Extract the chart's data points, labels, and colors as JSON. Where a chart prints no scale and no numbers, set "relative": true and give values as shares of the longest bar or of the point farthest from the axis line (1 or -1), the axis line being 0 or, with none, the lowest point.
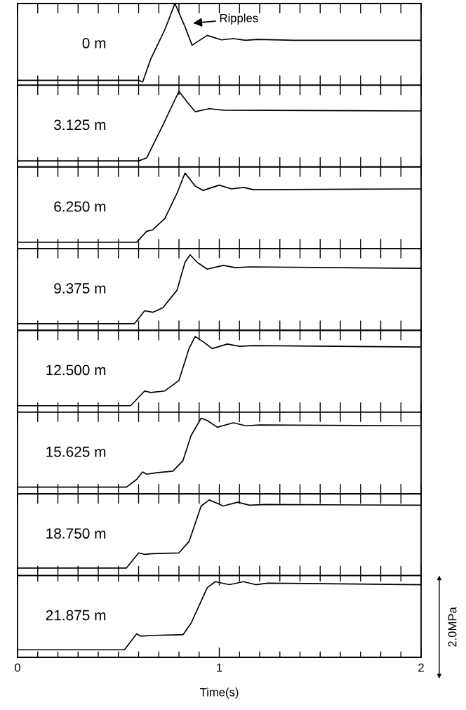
{
  "chart_data": [
    {
      "type": "line",
      "relative": true,
      "annotations": [
        "0 m",
        "Ripples"
      ],
      "color": "#000000",
      "x": [
        0,
        0.6,
        0.62,
        0.66,
        0.73,
        0.78,
        0.83,
        0.865,
        0.94,
        1.01,
        1.07,
        1.13,
        1.19,
        1.37,
        2.0
      ],
      "values": [
        0.06,
        0.06,
        0.04,
        0.32,
        0.68,
        1.0,
        0.715,
        0.49,
        0.61,
        0.555,
        0.57,
        0.55,
        0.56,
        0.55,
        0.55
      ],
      "xlim": [
        0,
        2
      ],
      "xticks": [
        0,
        0.1,
        0.2,
        0.3,
        0.4,
        0.5,
        0.6,
        0.7,
        0.8,
        0.9,
        1,
        1.1,
        1.2,
        1.3,
        1.4,
        1.5,
        1.6,
        1.7,
        1.8,
        1.9,
        2
      ],
      "tick_labels": false
    },
    {
      "type": "line",
      "relative": true,
      "annotations": [
        "3.125 m"
      ],
      "color": "#000000",
      "x": [
        0,
        0.6,
        0.64,
        0.72,
        0.8,
        0.84,
        0.88,
        0.95,
        1.02,
        2.0
      ],
      "values": [
        0.08,
        0.08,
        0.12,
        0.55,
        1.0,
        0.86,
        0.73,
        0.77,
        0.75,
        0.74
      ],
      "xlim": [
        0,
        2
      ],
      "xticks": [
        0,
        0.1,
        0.2,
        0.3,
        0.4,
        0.5,
        0.6,
        0.7,
        0.8,
        0.9,
        1,
        1.1,
        1.2,
        1.3,
        1.4,
        1.5,
        1.6,
        1.7,
        1.8,
        1.9,
        2
      ],
      "tick_labels": false
    },
    {
      "type": "line",
      "relative": true,
      "annotations": [
        "6.250 m"
      ],
      "color": "#000000",
      "x": [
        0,
        0.59,
        0.64,
        0.67,
        0.73,
        0.79,
        0.83,
        0.88,
        0.92,
        1.0,
        1.06,
        1.12,
        1.17,
        2.0
      ],
      "values": [
        0.085,
        0.085,
        0.23,
        0.25,
        0.4,
        0.73,
        1.0,
        0.83,
        0.77,
        0.84,
        0.79,
        0.81,
        0.78,
        0.79
      ],
      "xlim": [
        0,
        2
      ],
      "xticks": [
        0,
        0.1,
        0.2,
        0.3,
        0.4,
        0.5,
        0.6,
        0.7,
        0.8,
        0.9,
        1,
        1.1,
        1.2,
        1.3,
        1.4,
        1.5,
        1.6,
        1.7,
        1.8,
        1.9,
        2
      ],
      "tick_labels": false
    },
    {
      "type": "line",
      "relative": true,
      "annotations": [
        "9.375 m"
      ],
      "color": "#000000",
      "x": [
        0,
        0.58,
        0.63,
        0.67,
        0.72,
        0.79,
        0.83,
        0.855,
        0.89,
        0.94,
        1.02,
        1.08,
        1.15,
        2.0
      ],
      "values": [
        0.09,
        0.09,
        0.26,
        0.24,
        0.3,
        0.53,
        0.9,
        1.0,
        0.9,
        0.81,
        0.86,
        0.83,
        0.84,
        0.82
      ],
      "xlim": [
        0,
        2
      ],
      "xticks": [
        0,
        0.1,
        0.2,
        0.3,
        0.4,
        0.5,
        0.6,
        0.7,
        0.8,
        0.9,
        1,
        1.1,
        1.2,
        1.3,
        1.4,
        1.5,
        1.6,
        1.7,
        1.8,
        1.9,
        2
      ],
      "tick_labels": false
    },
    {
      "type": "line",
      "relative": true,
      "annotations": [
        "12.500 m"
      ],
      "color": "#000000",
      "x": [
        0,
        0.56,
        0.63,
        0.66,
        0.73,
        0.8,
        0.85,
        0.88,
        0.92,
        0.965,
        1.04,
        1.1,
        1.17,
        2.0
      ],
      "values": [
        0.085,
        0.085,
        0.28,
        0.26,
        0.28,
        0.42,
        0.84,
        1.0,
        0.93,
        0.84,
        0.9,
        0.87,
        0.88,
        0.86
      ],
      "xlim": [
        0,
        2
      ],
      "xticks": [
        0,
        0.1,
        0.2,
        0.3,
        0.4,
        0.5,
        0.6,
        0.7,
        0.8,
        0.9,
        1,
        1.1,
        1.2,
        1.3,
        1.4,
        1.5,
        1.6,
        1.7,
        1.8,
        1.9,
        2
      ],
      "tick_labels": false
    },
    {
      "type": "line",
      "relative": true,
      "annotations": [
        "15.625 m"
      ],
      "color": "#000000",
      "x": [
        0,
        0.54,
        0.59,
        0.62,
        0.64,
        0.69,
        0.77,
        0.82,
        0.86,
        0.91,
        0.94,
        0.99,
        1.07,
        1.13,
        1.2,
        2.0
      ],
      "values": [
        0.09,
        0.09,
        0.19,
        0.29,
        0.26,
        0.28,
        0.3,
        0.44,
        0.77,
        1.0,
        0.97,
        0.88,
        0.94,
        0.9,
        0.91,
        0.9
      ],
      "xlim": [
        0,
        2
      ],
      "xticks": [
        0,
        0.1,
        0.2,
        0.3,
        0.4,
        0.5,
        0.6,
        0.7,
        0.8,
        0.9,
        1,
        1.1,
        1.2,
        1.3,
        1.4,
        1.5,
        1.6,
        1.7,
        1.8,
        1.9,
        2
      ],
      "tick_labels": false
    },
    {
      "type": "line",
      "relative": true,
      "annotations": [
        "18.750 m"
      ],
      "color": "#000000",
      "x": [
        0,
        0.54,
        0.6,
        0.63,
        0.67,
        0.8,
        0.85,
        0.91,
        0.95,
        1.02,
        1.09,
        1.15,
        1.23,
        2.0
      ],
      "values": [
        0.1,
        0.1,
        0.3,
        0.28,
        0.29,
        0.3,
        0.45,
        0.92,
        1.0,
        0.92,
        0.97,
        0.93,
        0.94,
        0.93
      ],
      "xlim": [
        0,
        2
      ],
      "xticks": [
        0,
        0.1,
        0.2,
        0.3,
        0.4,
        0.5,
        0.6,
        0.7,
        0.8,
        0.9,
        1,
        1.1,
        1.2,
        1.3,
        1.4,
        1.5,
        1.6,
        1.7,
        1.8,
        1.9,
        2
      ],
      "tick_labels": false
    },
    {
      "type": "line",
      "relative": true,
      "annotations": [
        "21.875 m",
        "2.0MPa"
      ],
      "xlabel": "Time(s)",
      "color": "#000000",
      "x": [
        0,
        0.53,
        0.59,
        0.61,
        0.67,
        0.82,
        0.86,
        0.94,
        0.98,
        1.05,
        1.12,
        1.18,
        1.24,
        2.0
      ],
      "values": [
        0.1,
        0.1,
        0.31,
        0.28,
        0.29,
        0.3,
        0.45,
        0.92,
        1.0,
        0.96,
        1.0,
        0.96,
        0.98,
        0.96
      ],
      "xlim": [
        0,
        2
      ],
      "xticks": [
        0,
        {
          "value": 0.1,
          "label": null
        },
        {
          "value": 0.2,
          "label": null
        },
        {
          "value": 0.3,
          "label": null
        },
        {
          "value": 0.4,
          "label": null
        },
        {
          "value": 0.5,
          "label": null
        },
        {
          "value": 0.6,
          "label": null
        },
        {
          "value": 0.7,
          "label": null
        },
        {
          "value": 0.8,
          "label": null
        },
        {
          "value": 0.9,
          "label": null
        },
        1,
        {
          "value": 1.1,
          "label": null
        },
        {
          "value": 1.2,
          "label": null
        },
        {
          "value": 1.3,
          "label": null
        },
        {
          "value": 1.4,
          "label": null
        },
        {
          "value": 1.5,
          "label": null
        },
        {
          "value": 1.6,
          "label": null
        },
        {
          "value": 1.7,
          "label": null
        },
        {
          "value": 1.8,
          "label": null
        },
        {
          "value": 1.9,
          "label": null
        },
        2
      ],
      "tick_labels": "x"
    }
  ]
}
